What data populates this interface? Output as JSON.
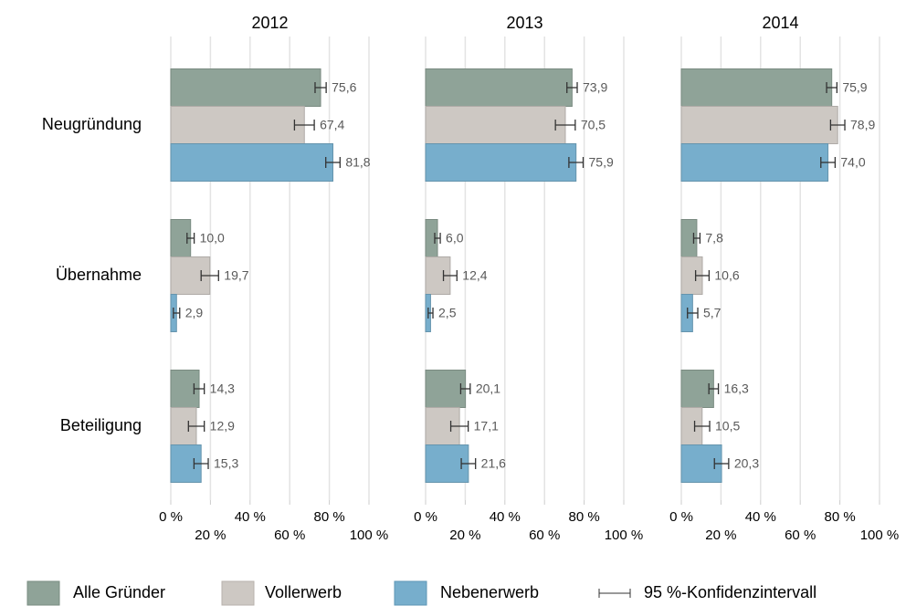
{
  "chart_data": {
    "type": "bar",
    "orientation": "horizontal",
    "categories": [
      "Neugründung",
      "Übernahme",
      "Beteiligung"
    ],
    "series": [
      {
        "name": "Alle Gründer",
        "color": "#8fa398"
      },
      {
        "name": "Vollerwerb",
        "color": "#cdc8c3"
      },
      {
        "name": "Nebenerwerb",
        "color": "#77aecc"
      }
    ],
    "ci_label": "95 %-Konfidenzintervall",
    "xlim": [
      0,
      100
    ],
    "xticks": [
      {
        "value": 0,
        "label": "0 %"
      },
      {
        "value": 20,
        "label": "20 %"
      },
      {
        "value": 40,
        "label": "40 %"
      },
      {
        "value": 60,
        "label": "60 %"
      },
      {
        "value": 80,
        "label": "80 %"
      },
      {
        "value": 100,
        "label": "100 %"
      }
    ],
    "grid": true,
    "panels": [
      {
        "title": "2012",
        "series": [
          {
            "values": [
              75.6,
              10.0,
              14.3
            ],
            "value_labels": [
              "75,6",
              "10,0",
              "14,3"
            ],
            "errors": [
              2.8,
              1.8,
              2.6
            ]
          },
          {
            "values": [
              67.4,
              19.7,
              12.9
            ],
            "value_labels": [
              "67,4",
              "19,7",
              "12,9"
            ],
            "errors": [
              5.0,
              4.4,
              4.0
            ]
          },
          {
            "values": [
              81.8,
              2.9,
              15.3
            ],
            "value_labels": [
              "81,8",
              "2,9",
              "15,3"
            ],
            "errors": [
              3.6,
              1.6,
              3.6
            ]
          }
        ]
      },
      {
        "title": "2013",
        "series": [
          {
            "values": [
              73.9,
              6.0,
              20.1
            ],
            "value_labels": [
              "73,9",
              "6,0",
              "20,1"
            ],
            "errors": [
              2.6,
              1.4,
              2.4
            ]
          },
          {
            "values": [
              70.5,
              12.4,
              17.1
            ],
            "value_labels": [
              "70,5",
              "12,4",
              "17,1"
            ],
            "errors": [
              5.0,
              3.4,
              4.4
            ]
          },
          {
            "values": [
              75.9,
              2.5,
              21.6
            ],
            "value_labels": [
              "75,9",
              "2,5",
              "21,6"
            ],
            "errors": [
              3.6,
              1.2,
              3.6
            ]
          }
        ]
      },
      {
        "title": "2014",
        "series": [
          {
            "values": [
              75.9,
              7.8,
              16.3
            ],
            "value_labels": [
              "75,9",
              "7,8",
              "16,3"
            ],
            "errors": [
              2.6,
              1.6,
              2.4
            ]
          },
          {
            "values": [
              78.9,
              10.6,
              10.5
            ],
            "value_labels": [
              "78,9",
              "10,6",
              "10,5"
            ],
            "errors": [
              3.6,
              3.4,
              3.8
            ]
          },
          {
            "values": [
              74.0,
              5.7,
              20.3
            ],
            "value_labels": [
              "74,0",
              "5,7",
              "20,3"
            ],
            "errors": [
              3.6,
              2.6,
              3.6
            ]
          }
        ]
      }
    ]
  }
}
